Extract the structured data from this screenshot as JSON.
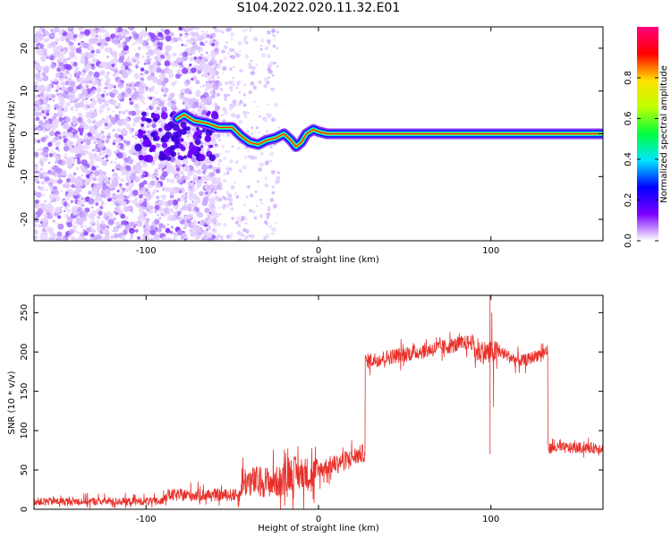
{
  "title": "S104.2022.020.11.32.E01",
  "chart_data": [
    {
      "type": "heatmap",
      "xlabel": "Height of straight line (km)",
      "ylabel": "Frequency (Hz)",
      "xlim": [
        -165,
        165
      ],
      "ylim": [
        -25,
        25
      ],
      "x_ticks": [
        -100,
        0,
        100
      ],
      "y_ticks": [
        -20,
        -10,
        0,
        10,
        20
      ],
      "grid": false,
      "colorbar": {
        "label": "Normalized spectral amplitude",
        "range": [
          0,
          1
        ],
        "ticks": [
          "0.0",
          "0.2",
          "0.4",
          "0.6",
          "0.8"
        ],
        "colors": [
          "#ffffff",
          "#7b00ff",
          "#0000ff",
          "#00e5ff",
          "#00ff40",
          "#c0ff00",
          "#ffe000",
          "#ff0000",
          "#ff0080"
        ]
      },
      "signal_trace": [
        [
          -82,
          3.5
        ],
        [
          -78,
          4.5
        ],
        [
          -72,
          3
        ],
        [
          -65,
          2.5
        ],
        [
          -58,
          1.5
        ],
        [
          -50,
          1.5
        ],
        [
          -45,
          -0.5
        ],
        [
          -40,
          -2
        ],
        [
          -35,
          -2.5
        ],
        [
          -30,
          -1.5
        ],
        [
          -25,
          -1
        ],
        [
          -20,
          0
        ],
        [
          -16,
          -1.5
        ],
        [
          -13,
          -3
        ],
        [
          -10,
          -2
        ],
        [
          -7,
          0
        ],
        [
          -3,
          1
        ],
        [
          0,
          0.5
        ],
        [
          5,
          0
        ],
        [
          15,
          0
        ],
        [
          30,
          0
        ],
        [
          60,
          0
        ],
        [
          100,
          0
        ],
        [
          130,
          0
        ],
        [
          165,
          0
        ]
      ]
    },
    {
      "type": "line",
      "xlabel": "Height of straight line (km)",
      "ylabel": "SNR (10 * v/v)",
      "xlim": [
        -165,
        165
      ],
      "ylim": [
        0,
        272
      ],
      "x_ticks": [
        -100,
        0,
        100
      ],
      "y_ticks": [
        0,
        50,
        100,
        150,
        200,
        250
      ],
      "grid": false,
      "color": "#e8302a",
      "segments": [
        {
          "x": [
            -165,
            -90
          ],
          "base": 10,
          "noise": 5
        },
        {
          "x": [
            -90,
            -45
          ],
          "base": 18,
          "noise": 8
        },
        {
          "x": [
            -45,
            -20
          ],
          "base": 35,
          "noise": 20
        },
        {
          "x": [
            -20,
            0
          ],
          "base": 45,
          "noise": 22
        },
        {
          "x": [
            0,
            27
          ],
          "base": 62,
          "noise": 12
        },
        {
          "x": [
            27,
            60
          ],
          "base": 192,
          "noise": 10
        },
        {
          "x": [
            60,
            90
          ],
          "base": 208,
          "noise": 10
        },
        {
          "x": [
            90,
            105
          ],
          "base": 200,
          "noise": 15
        },
        {
          "x": [
            105,
            133
          ],
          "base": 200,
          "noise": 8
        },
        {
          "x": [
            133,
            165
          ],
          "base": 78,
          "noise": 7
        }
      ],
      "spikes": [
        [
          99.5,
          272
        ],
        [
          99.5,
          70
        ],
        [
          100.5,
          250
        ],
        [
          101.5,
          130
        ]
      ]
    }
  ]
}
